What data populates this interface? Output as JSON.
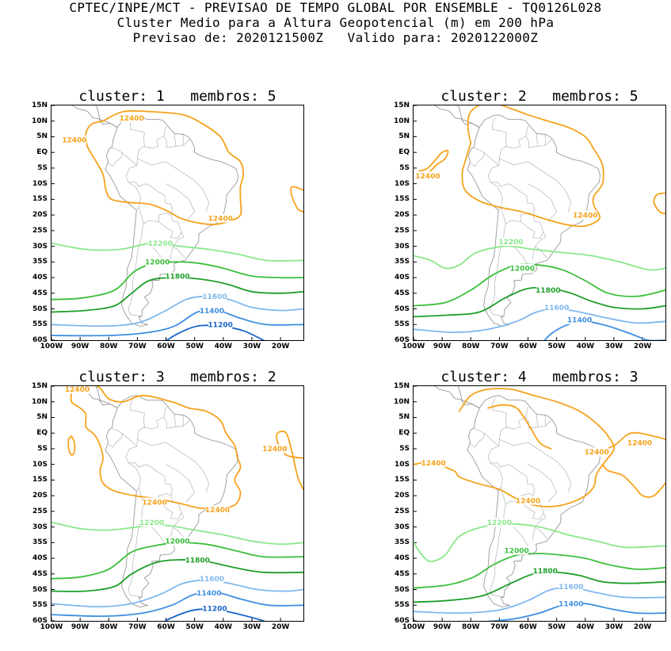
{
  "header": {
    "line1": "CPTEC/INPE/MCT - PREVISAO DE TEMPO GLOBAL POR ENSEMBLE - TQ0126L028",
    "line2": "Cluster Medio para a Altura Geopotencial (m) em 200 hPa",
    "line3": "Previsao de: 2020121500Z   Valido para: 2020122000Z"
  },
  "axes": {
    "lat_labels": [
      "15N",
      "10N",
      "5N",
      "EQ",
      "5S",
      "10S",
      "15S",
      "20S",
      "25S",
      "30S",
      "35S",
      "40S",
      "45S",
      "50S",
      "55S",
      "60S"
    ],
    "lon_labels": [
      "100W",
      "90W",
      "80W",
      "70W",
      "60W",
      "50W",
      "40W",
      "30W",
      "20W"
    ]
  },
  "contour_colors": {
    "12400": "#f5a21b",
    "12200": "#8ae88a",
    "12000": "#3cbf3c",
    "11800": "#1e9e2a",
    "11600": "#7fb8ee",
    "11400": "#3d8fe0",
    "11200": "#1a64c8"
  },
  "panels": [
    {
      "title": "cluster: 1   membros: 5",
      "labels": [
        {
          "text": "12400",
          "color": "12400"
        },
        {
          "text": "12400",
          "color": "12400"
        },
        {
          "text": "12400",
          "color": "12400"
        },
        {
          "text": "12200",
          "color": "12200"
        },
        {
          "text": "12000",
          "color": "12000"
        },
        {
          "text": "11800",
          "color": "11800"
        },
        {
          "text": "11600",
          "color": "11600"
        },
        {
          "text": "11400",
          "color": "11400"
        },
        {
          "text": "11200",
          "color": "11200"
        }
      ]
    },
    {
      "title": "cluster: 2   membros: 5",
      "labels": [
        {
          "text": "12400",
          "color": "12400"
        },
        {
          "text": "12400",
          "color": "12400"
        },
        {
          "text": "12200",
          "color": "12200"
        },
        {
          "text": "12000",
          "color": "12000"
        },
        {
          "text": "11800",
          "color": "11800"
        },
        {
          "text": "11600",
          "color": "11600"
        },
        {
          "text": "11400",
          "color": "11400"
        }
      ]
    },
    {
      "title": "cluster: 3   membros: 2",
      "labels": [
        {
          "text": "12400",
          "color": "12400"
        },
        {
          "text": "12400",
          "color": "12400"
        },
        {
          "text": "12400",
          "color": "12400"
        },
        {
          "text": "12400",
          "color": "12400"
        },
        {
          "text": "12200",
          "color": "12200"
        },
        {
          "text": "12000",
          "color": "12000"
        },
        {
          "text": "11800",
          "color": "11800"
        },
        {
          "text": "11600",
          "color": "11600"
        },
        {
          "text": "11400",
          "color": "11400"
        },
        {
          "text": "11200",
          "color": "11200"
        }
      ]
    },
    {
      "title": "cluster: 4   membros: 3",
      "labels": [
        {
          "text": "12400",
          "color": "12400"
        },
        {
          "text": "12400",
          "color": "12400"
        },
        {
          "text": "12400",
          "color": "12400"
        },
        {
          "text": "12400",
          "color": "12400"
        },
        {
          "text": "12200",
          "color": "12200"
        },
        {
          "text": "12000",
          "color": "12000"
        },
        {
          "text": "11800",
          "color": "11800"
        },
        {
          "text": "11600",
          "color": "11600"
        },
        {
          "text": "11400",
          "color": "11400"
        }
      ]
    }
  ]
}
